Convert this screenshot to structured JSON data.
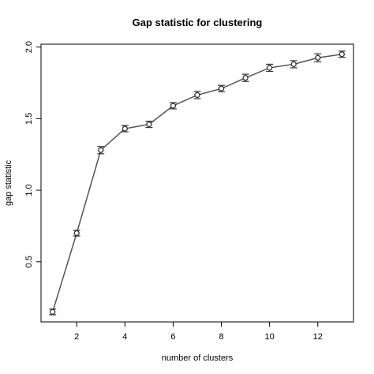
{
  "chart_data": {
    "type": "line",
    "title": "Gap statistic for clustering",
    "xlabel": "number of clusters",
    "ylabel": "gap statistic",
    "x": [
      1,
      2,
      3,
      4,
      5,
      6,
      7,
      8,
      9,
      10,
      11,
      12,
      13
    ],
    "series": [
      {
        "values": [
          0.15,
          0.7,
          1.28,
          1.43,
          1.46,
          1.59,
          1.665,
          1.71,
          1.785,
          1.855,
          1.88,
          1.925,
          1.95
        ],
        "error": [
          0.02,
          0.02,
          0.025,
          0.022,
          0.022,
          0.022,
          0.025,
          0.022,
          0.025,
          0.025,
          0.025,
          0.028,
          0.022
        ]
      }
    ],
    "xticks": [
      2,
      4,
      6,
      8,
      10,
      12
    ],
    "yticks": [
      0.5,
      1.0,
      1.5,
      2.0
    ],
    "ytick_labels": [
      "0.5",
      "1.0",
      "1.5",
      "2.0"
    ],
    "xlim": [
      0.52,
      13.48
    ],
    "ylim": [
      0.08,
      2.02
    ],
    "grid": false,
    "line_color": "#555555",
    "point_color": "#333333"
  }
}
